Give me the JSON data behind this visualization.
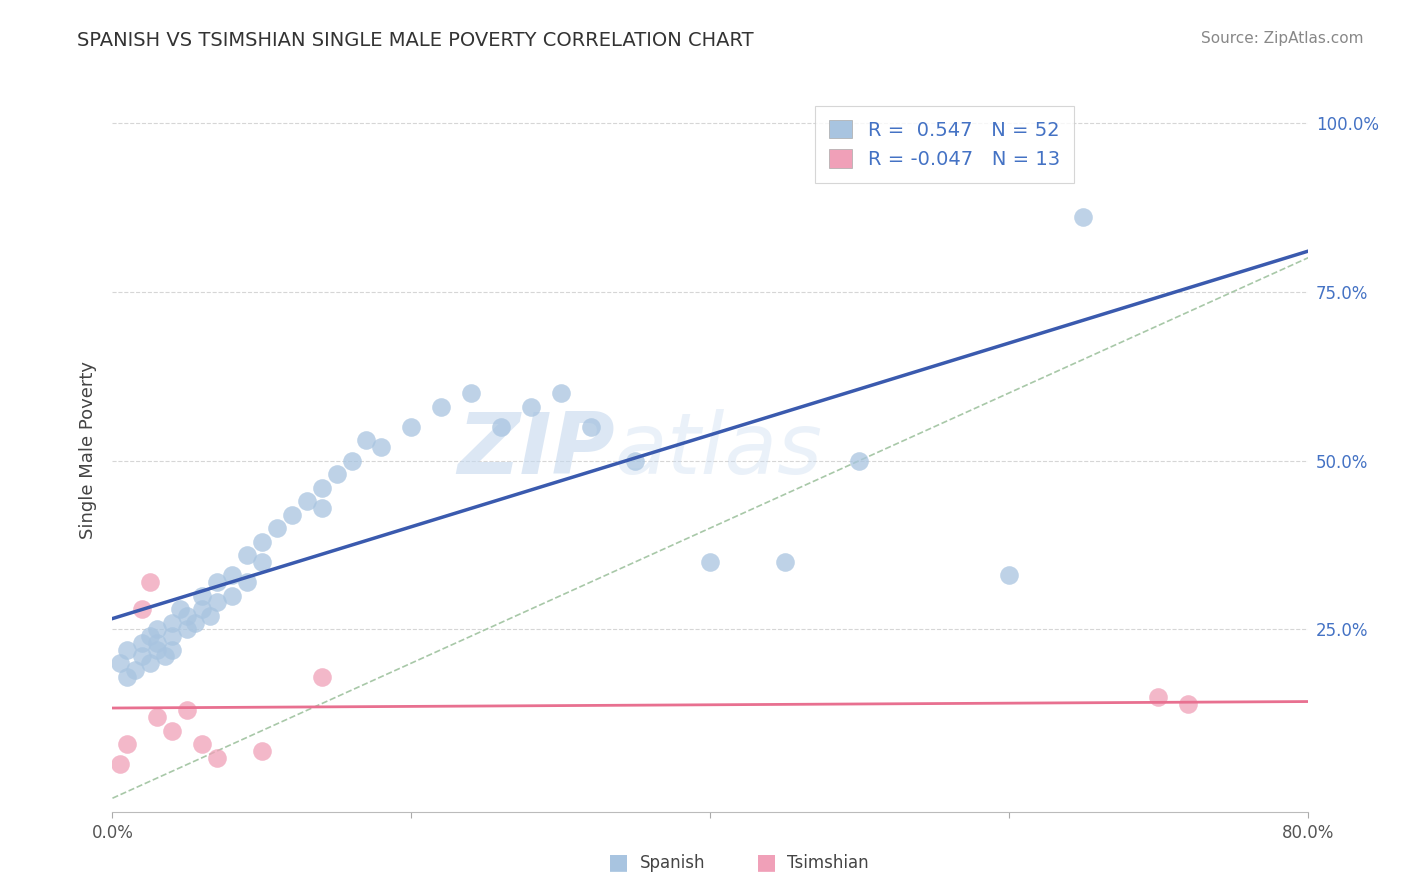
{
  "title": "SPANISH VS TSIMSHIAN SINGLE MALE POVERTY CORRELATION CHART",
  "source": "Source: ZipAtlas.com",
  "ylabel": "Single Male Poverty",
  "xlim": [
    0.0,
    0.8
  ],
  "ylim": [
    -0.02,
    1.05
  ],
  "spanish_R": 0.547,
  "spanish_N": 52,
  "tsimshian_R": -0.047,
  "tsimshian_N": 13,
  "spanish_color": "#A8C4E0",
  "tsimshian_color": "#F0A0B8",
  "spanish_line_color": "#3A5AAE",
  "tsimshian_line_color": "#E87090",
  "diag_line_color": "#A8C8A8",
  "background_color": "#FFFFFF",
  "watermark_zip": "ZIP",
  "watermark_atlas": "atlas",
  "spanish_x": [
    0.005,
    0.01,
    0.01,
    0.015,
    0.02,
    0.02,
    0.025,
    0.025,
    0.03,
    0.03,
    0.03,
    0.035,
    0.04,
    0.04,
    0.04,
    0.045,
    0.05,
    0.05,
    0.055,
    0.06,
    0.06,
    0.065,
    0.07,
    0.07,
    0.08,
    0.08,
    0.09,
    0.09,
    0.1,
    0.1,
    0.11,
    0.12,
    0.13,
    0.14,
    0.14,
    0.15,
    0.16,
    0.17,
    0.18,
    0.2,
    0.22,
    0.24,
    0.26,
    0.28,
    0.3,
    0.32,
    0.35,
    0.4,
    0.45,
    0.5,
    0.6,
    0.65
  ],
  "spanish_y": [
    0.2,
    0.18,
    0.22,
    0.19,
    0.21,
    0.23,
    0.2,
    0.24,
    0.22,
    0.23,
    0.25,
    0.21,
    0.24,
    0.26,
    0.22,
    0.28,
    0.25,
    0.27,
    0.26,
    0.28,
    0.3,
    0.27,
    0.32,
    0.29,
    0.33,
    0.3,
    0.36,
    0.32,
    0.38,
    0.35,
    0.4,
    0.42,
    0.44,
    0.46,
    0.43,
    0.48,
    0.5,
    0.53,
    0.52,
    0.55,
    0.58,
    0.6,
    0.55,
    0.58,
    0.6,
    0.55,
    0.5,
    0.35,
    0.35,
    0.5,
    0.33,
    0.86
  ],
  "tsimshian_x": [
    0.005,
    0.01,
    0.02,
    0.025,
    0.03,
    0.04,
    0.05,
    0.06,
    0.07,
    0.1,
    0.14,
    0.7,
    0.72
  ],
  "tsimshian_y": [
    0.05,
    0.08,
    0.28,
    0.32,
    0.12,
    0.1,
    0.13,
    0.08,
    0.06,
    0.07,
    0.18,
    0.15,
    0.14
  ]
}
